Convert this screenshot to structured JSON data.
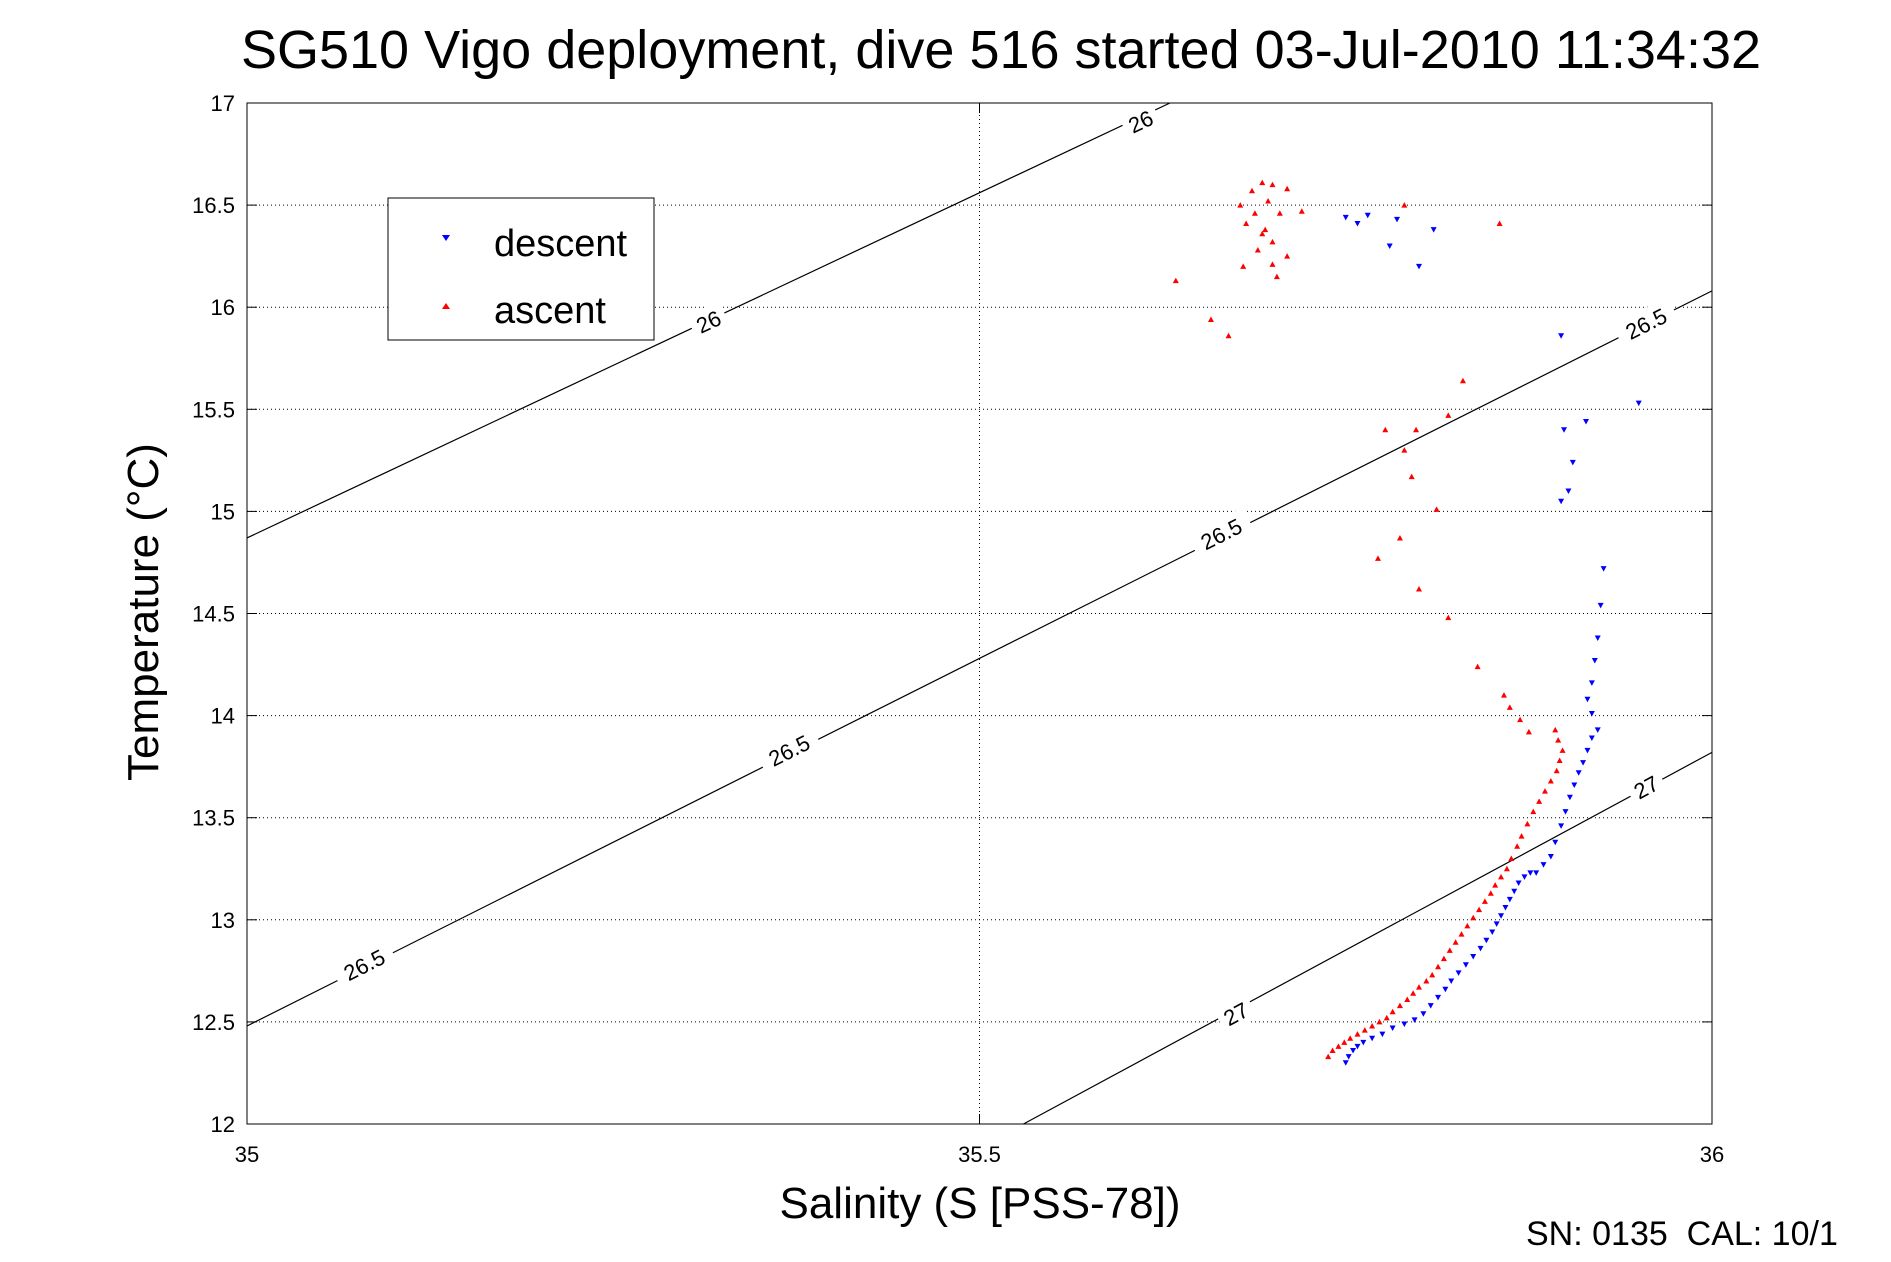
{
  "chart_data": {
    "type": "scatter",
    "title": "SG510 Vigo deployment, dive 516 started 03-Jul-2010 11:34:32",
    "xlabel": "Salinity (S [PSS-78])",
    "ylabel": "Temperature (°C)",
    "xlim": [
      35,
      36
    ],
    "ylim": [
      12,
      17
    ],
    "x_ticks": [
      "35",
      "35.5",
      "36"
    ],
    "y_ticks": [
      "12",
      "12.5",
      "13",
      "13.5",
      "14",
      "14.5",
      "15",
      "15.5",
      "16",
      "16.5",
      "17"
    ],
    "grid": true,
    "legend_position": "top-left",
    "footer": "SN: 0135  CAL: 10/1",
    "contours": [
      {
        "value": "26",
        "points": [
          [
            35.0,
            14.87
          ],
          [
            35.63,
            17.0
          ]
        ],
        "labels": [
          {
            "x": 35.61,
            "y": 16.91,
            "text": "26"
          },
          {
            "x": 35.315,
            "y": 15.93,
            "text": "26"
          }
        ]
      },
      {
        "value": "26.5",
        "points": [
          [
            35.0,
            12.48
          ],
          [
            36.0,
            16.08
          ]
        ],
        "labels": [
          {
            "x": 35.08,
            "y": 12.78,
            "text": "26.5"
          },
          {
            "x": 35.37,
            "y": 13.83,
            "text": "26.5"
          },
          {
            "x": 35.665,
            "y": 14.89,
            "text": "26.5"
          },
          {
            "x": 35.955,
            "y": 15.92,
            "text": "26.5"
          }
        ]
      },
      {
        "value": "27",
        "points": [
          [
            35.53,
            12.0
          ],
          [
            36.0,
            13.82
          ]
        ],
        "labels": [
          {
            "x": 35.675,
            "y": 12.54,
            "text": "27"
          },
          {
            "x": 35.955,
            "y": 13.65,
            "text": "27"
          }
        ]
      }
    ],
    "series": [
      {
        "name": "descent",
        "color": "#0000ff",
        "marker": "triangle-down",
        "points": [
          [
            35.75,
            12.3
          ],
          [
            35.752,
            12.33
          ],
          [
            35.755,
            12.36
          ],
          [
            35.758,
            12.38
          ],
          [
            35.762,
            12.4
          ],
          [
            35.768,
            12.42
          ],
          [
            35.775,
            12.44
          ],
          [
            35.782,
            12.47
          ],
          [
            35.79,
            12.49
          ],
          [
            35.797,
            12.51
          ],
          [
            35.803,
            12.54
          ],
          [
            35.808,
            12.58
          ],
          [
            35.813,
            12.62
          ],
          [
            35.818,
            12.66
          ],
          [
            35.822,
            12.7
          ],
          [
            35.827,
            12.74
          ],
          [
            35.832,
            12.78
          ],
          [
            35.837,
            12.82
          ],
          [
            35.842,
            12.86
          ],
          [
            35.846,
            12.9
          ],
          [
            35.85,
            12.94
          ],
          [
            35.853,
            12.98
          ],
          [
            35.856,
            13.02
          ],
          [
            35.859,
            13.06
          ],
          [
            35.862,
            13.1
          ],
          [
            35.865,
            13.14
          ],
          [
            35.868,
            13.18
          ],
          [
            35.872,
            13.21
          ],
          [
            35.876,
            13.23
          ],
          [
            35.88,
            13.23
          ],
          [
            35.885,
            13.27
          ],
          [
            35.89,
            13.31
          ],
          [
            35.893,
            13.38
          ],
          [
            35.897,
            13.46
          ],
          [
            35.9,
            13.53
          ],
          [
            35.903,
            13.6
          ],
          [
            35.906,
            13.66
          ],
          [
            35.909,
            13.72
          ],
          [
            35.912,
            13.77
          ],
          [
            35.915,
            13.83
          ],
          [
            35.918,
            13.89
          ],
          [
            35.922,
            13.93
          ],
          [
            35.918,
            14.01
          ],
          [
            35.915,
            14.08
          ],
          [
            35.918,
            14.16
          ],
          [
            35.92,
            14.27
          ],
          [
            35.922,
            14.38
          ],
          [
            35.924,
            14.54
          ],
          [
            35.926,
            14.72
          ],
          [
            35.902,
            15.1
          ],
          [
            35.897,
            15.05
          ],
          [
            35.905,
            15.24
          ],
          [
            35.899,
            15.4
          ],
          [
            35.914,
            15.44
          ],
          [
            35.95,
            15.53
          ],
          [
            35.897,
            15.86
          ],
          [
            35.81,
            16.38
          ],
          [
            35.8,
            16.2
          ],
          [
            35.785,
            16.43
          ],
          [
            35.78,
            16.3
          ],
          [
            35.765,
            16.45
          ],
          [
            35.758,
            16.41
          ],
          [
            35.75,
            16.44
          ]
        ]
      },
      {
        "name": "ascent",
        "color": "#ff0000",
        "marker": "triangle-up",
        "points": [
          [
            35.738,
            12.33
          ],
          [
            35.741,
            12.36
          ],
          [
            35.745,
            12.38
          ],
          [
            35.749,
            12.4
          ],
          [
            35.753,
            12.42
          ],
          [
            35.758,
            12.44
          ],
          [
            35.763,
            12.46
          ],
          [
            35.768,
            12.48
          ],
          [
            35.773,
            12.5
          ],
          [
            35.778,
            12.52
          ],
          [
            35.782,
            12.55
          ],
          [
            35.787,
            12.58
          ],
          [
            35.792,
            12.61
          ],
          [
            35.796,
            12.64
          ],
          [
            35.8,
            12.67
          ],
          [
            35.805,
            12.7
          ],
          [
            35.809,
            12.73
          ],
          [
            35.813,
            12.77
          ],
          [
            35.817,
            12.81
          ],
          [
            35.821,
            12.85
          ],
          [
            35.825,
            12.89
          ],
          [
            35.829,
            12.93
          ],
          [
            35.833,
            12.97
          ],
          [
            35.837,
            13.01
          ],
          [
            35.841,
            13.05
          ],
          [
            35.845,
            13.09
          ],
          [
            35.849,
            13.13
          ],
          [
            35.852,
            13.17
          ],
          [
            35.856,
            13.21
          ],
          [
            35.86,
            13.25
          ],
          [
            35.863,
            13.3
          ],
          [
            35.867,
            13.36
          ],
          [
            35.87,
            13.41
          ],
          [
            35.874,
            13.47
          ],
          [
            35.878,
            13.53
          ],
          [
            35.882,
            13.58
          ],
          [
            35.886,
            13.63
          ],
          [
            35.89,
            13.68
          ],
          [
            35.894,
            13.73
          ],
          [
            35.896,
            13.78
          ],
          [
            35.898,
            13.83
          ],
          [
            35.895,
            13.88
          ],
          [
            35.893,
            13.93
          ],
          [
            35.875,
            13.92
          ],
          [
            35.869,
            13.98
          ],
          [
            35.862,
            14.04
          ],
          [
            35.858,
            14.1
          ],
          [
            35.84,
            14.24
          ],
          [
            35.82,
            14.48
          ],
          [
            35.8,
            14.62
          ],
          [
            35.787,
            14.87
          ],
          [
            35.772,
            14.77
          ],
          [
            35.812,
            15.01
          ],
          [
            35.795,
            15.17
          ],
          [
            35.79,
            15.3
          ],
          [
            35.798,
            15.4
          ],
          [
            35.777,
            15.4
          ],
          [
            35.82,
            15.47
          ],
          [
            35.83,
            15.64
          ],
          [
            35.67,
            15.86
          ],
          [
            35.658,
            15.94
          ],
          [
            35.634,
            16.13
          ],
          [
            35.68,
            16.2
          ],
          [
            35.69,
            16.28
          ],
          [
            35.7,
            16.21
          ],
          [
            35.71,
            16.25
          ],
          [
            35.703,
            16.15
          ],
          [
            35.682,
            16.41
          ],
          [
            35.693,
            16.36
          ],
          [
            35.7,
            16.32
          ],
          [
            35.705,
            16.46
          ],
          [
            35.697,
            16.52
          ],
          [
            35.686,
            16.57
          ],
          [
            35.693,
            16.61
          ],
          [
            35.7,
            16.6
          ],
          [
            35.71,
            16.58
          ],
          [
            35.72,
            16.47
          ],
          [
            35.79,
            16.5
          ],
          [
            35.855,
            16.41
          ],
          [
            35.678,
            16.5
          ],
          [
            35.688,
            16.46
          ],
          [
            35.695,
            16.38
          ]
        ]
      }
    ]
  }
}
